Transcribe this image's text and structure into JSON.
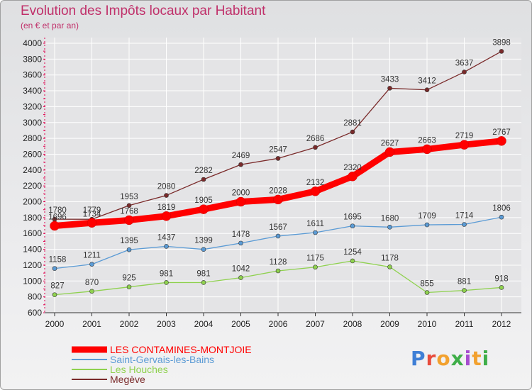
{
  "header": {
    "title": "Evolution des Impôts locaux par Habitant",
    "subtitle": "(en € et par an)"
  },
  "logo": {
    "text": "Proxiti"
  },
  "colors": {
    "title": "#c0306a",
    "background": "#e6e6e8",
    "grid": "#ffffff",
    "axis": "#e0004d"
  },
  "chart_data": {
    "type": "line",
    "x": [
      2000,
      2001,
      2002,
      2003,
      2004,
      2005,
      2006,
      2007,
      2008,
      2009,
      2010,
      2011,
      2012
    ],
    "ylim": [
      600,
      4000
    ],
    "yticks": [
      600,
      800,
      1000,
      1200,
      1400,
      1600,
      1800,
      2000,
      2200,
      2400,
      2600,
      2800,
      3000,
      3200,
      3400,
      3600,
      3800,
      4000
    ],
    "grid": true,
    "legend_position": "bottom-left",
    "series": [
      {
        "name": "LES CONTAMINES-MONTJOIE",
        "color": "#ff0000",
        "emphasis": true,
        "values": [
          1696,
          1734,
          1768,
          1819,
          1905,
          2000,
          2028,
          2132,
          2320,
          2627,
          2663,
          2719,
          2767
        ]
      },
      {
        "name": "Saint-Gervais-les-Bains",
        "color": "#5b9bd5",
        "values": [
          1158,
          1211,
          1395,
          1437,
          1399,
          1478,
          1567,
          1611,
          1695,
          1680,
          1709,
          1714,
          1806
        ]
      },
      {
        "name": "Les Houches",
        "color": "#8fd14f",
        "values": [
          827,
          870,
          925,
          981,
          981,
          1042,
          1128,
          1175,
          1254,
          1178,
          855,
          881,
          918
        ]
      },
      {
        "name": "Megève",
        "color": "#7a2a2a",
        "values": [
          1780,
          1779,
          1953,
          2080,
          2282,
          2469,
          2547,
          2686,
          2881,
          3433,
          3412,
          3637,
          3898
        ]
      }
    ]
  }
}
